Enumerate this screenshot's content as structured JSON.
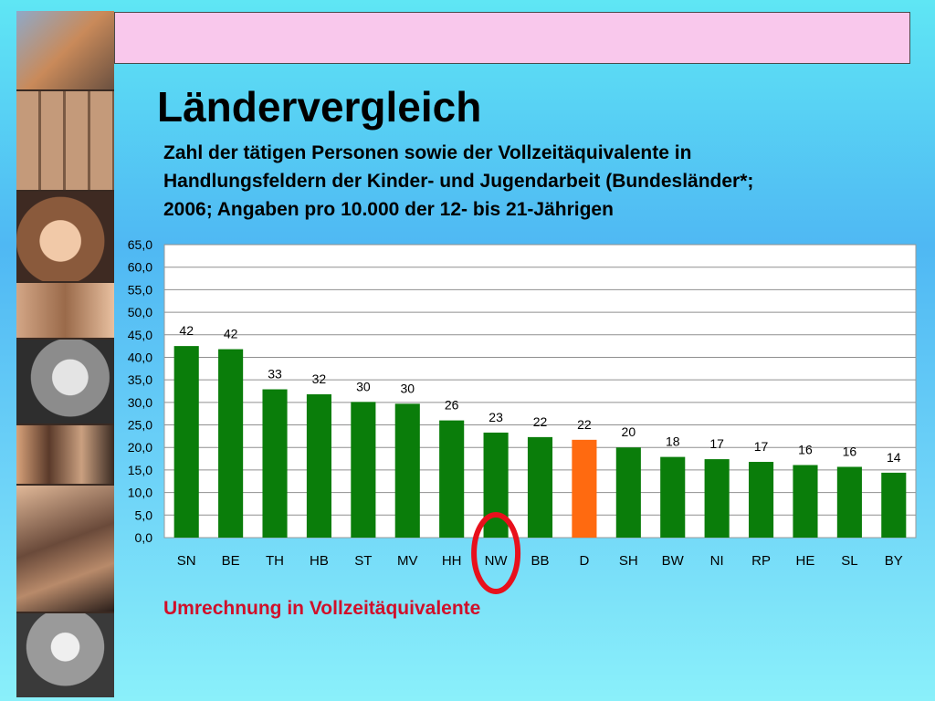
{
  "slide": {
    "title": "Ländervergleich",
    "subtitle_lines": [
      "Zahl der tätigen Personen sowie der Vollzeitäquivalente in",
      "Handlungsfeldern der Kinder- und Jugendarbeit (Bundesländer*;",
      "2006; Angaben pro 10.000 der 12- bis 21-Jährigen"
    ],
    "footnote": "Umrechnung in Vollzeitäquivalente",
    "banner_color": "#f9c8ec"
  },
  "chart_data": {
    "type": "bar",
    "title": "",
    "xlabel": "",
    "ylabel": "",
    "categories": [
      "SN",
      "BE",
      "TH",
      "HB",
      "ST",
      "MV",
      "HH",
      "NW",
      "BB",
      "D",
      "SH",
      "BW",
      "NI",
      "RP",
      "HE",
      "SL",
      "BY"
    ],
    "values": [
      42.5,
      41.8,
      32.9,
      31.8,
      30.1,
      29.7,
      26.0,
      23.3,
      22.3,
      21.7,
      20.0,
      17.9,
      17.4,
      16.8,
      16.1,
      15.7,
      14.4
    ],
    "data_labels": [
      "42",
      "42",
      "33",
      "32",
      "30",
      "30",
      "26",
      "23",
      "22",
      "22",
      "20",
      "18",
      "17",
      "17",
      "16",
      "16",
      "14"
    ],
    "ylim": [
      0,
      65
    ],
    "yticks": [
      "0,0",
      "5,0",
      "10,0",
      "15,0",
      "20,0",
      "25,0",
      "30,0",
      "35,0",
      "40,0",
      "45,0",
      "50,0",
      "55,0",
      "60,0",
      "65,0"
    ],
    "grid": true,
    "bar_color": "#0a7d0a",
    "highlight_category": "D",
    "highlight_color": "#ff6a10",
    "circled_category": "NW",
    "circle_color": "#e8101c"
  }
}
